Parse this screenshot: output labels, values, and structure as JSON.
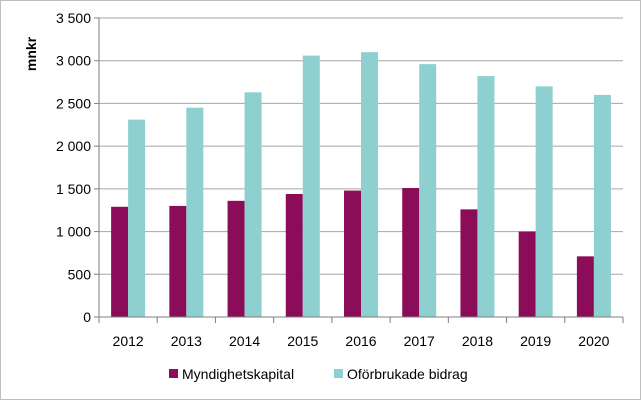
{
  "chart_data": {
    "type": "bar",
    "title": "",
    "xlabel": "",
    "ylabel": "mnkr",
    "categories": [
      "2012",
      "2013",
      "2014",
      "2015",
      "2016",
      "2017",
      "2018",
      "2019",
      "2020"
    ],
    "series": [
      {
        "name": "Myndighetskapital",
        "color": "#8b0d5a",
        "values": [
          1290,
          1300,
          1360,
          1440,
          1480,
          1510,
          1260,
          1000,
          710
        ]
      },
      {
        "name": "Oförbrukade bidrag",
        "color": "#8ecfcf",
        "values": [
          2310,
          2450,
          2630,
          3060,
          3100,
          2960,
          2820,
          2700,
          2600
        ]
      }
    ],
    "ylim": [
      0,
      3500
    ],
    "yticks": [
      0,
      500,
      1000,
      1500,
      2000,
      2500,
      3000,
      3500
    ],
    "ytick_labels": [
      "0",
      "500",
      "1 000",
      "1 500",
      "2 000",
      "2 500",
      "3 000",
      "3 500"
    ],
    "grid": true,
    "legend": "bottom"
  }
}
